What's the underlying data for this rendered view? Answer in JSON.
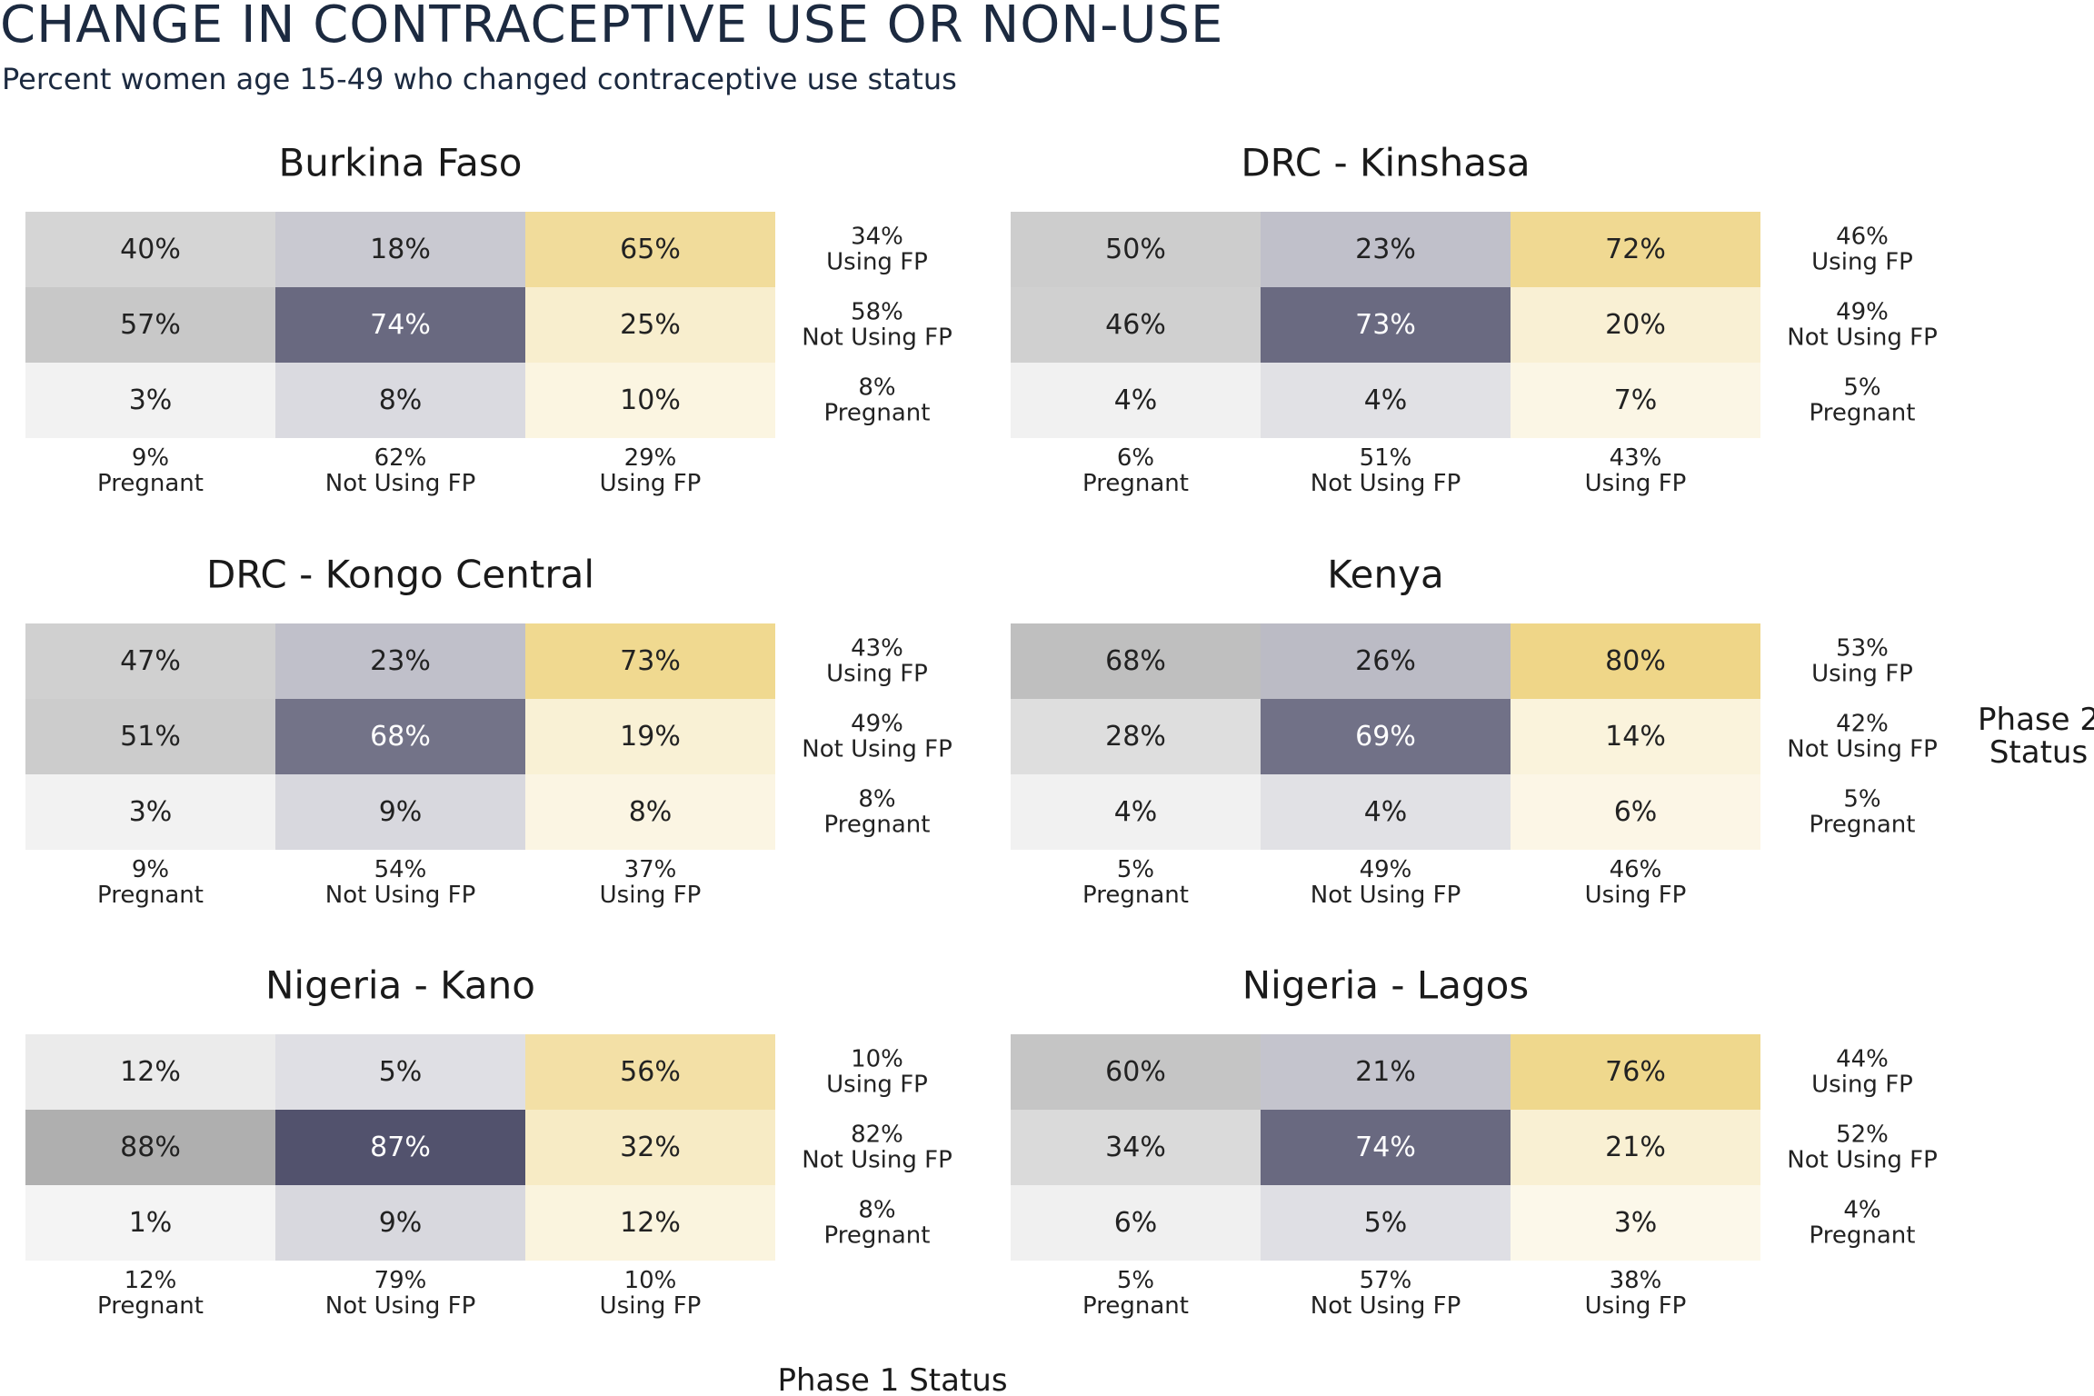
{
  "title": "CHANGE IN CONTRACEPTIVE USE OR NON-USE",
  "subtitle": "Percent women age 15-49 who changed contraceptive use status",
  "x_axis_label": "Phase 1 Status",
  "y_axis_label": [
    "Phase 2",
    "Status"
  ],
  "colors": {
    "pregnant": "#a6a6a6",
    "not_using": "#3c3c5a",
    "using": "#ebcd6e"
  },
  "chart_data": {
    "type": "heatmap",
    "columns": [
      "Pregnant",
      "Not Using FP",
      "Using FP"
    ],
    "rows": [
      "Using FP",
      "Not Using FP",
      "Pregnant"
    ],
    "xlabel": "Phase 1 Status",
    "ylabel": "Phase 2 Status",
    "panels": [
      {
        "title": "Burkina Faso",
        "cells": [
          [
            "40%",
            "18%",
            "65%"
          ],
          [
            "57%",
            "74%",
            "25%"
          ],
          [
            "3%",
            "8%",
            "10%"
          ]
        ],
        "values": [
          [
            40,
            18,
            65
          ],
          [
            57,
            74,
            25
          ],
          [
            3,
            8,
            10
          ]
        ],
        "col_totals": [
          "9%",
          "62%",
          "29%"
        ],
        "row_totals": [
          "34%",
          "58%",
          "8%"
        ]
      },
      {
        "title": "DRC - Kinshasa",
        "cells": [
          [
            "50%",
            "23%",
            "72%"
          ],
          [
            "46%",
            "73%",
            "20%"
          ],
          [
            "4%",
            "4%",
            "7%"
          ]
        ],
        "values": [
          [
            50,
            23,
            72
          ],
          [
            46,
            73,
            20
          ],
          [
            4,
            4,
            7
          ]
        ],
        "col_totals": [
          "6%",
          "51%",
          "43%"
        ],
        "row_totals": [
          "46%",
          "49%",
          "5%"
        ]
      },
      {
        "title": "DRC - Kongo Central",
        "cells": [
          [
            "47%",
            "23%",
            "73%"
          ],
          [
            "51%",
            "68%",
            "19%"
          ],
          [
            "3%",
            "9%",
            "8%"
          ]
        ],
        "values": [
          [
            47,
            23,
            73
          ],
          [
            51,
            68,
            19
          ],
          [
            3,
            9,
            8
          ]
        ],
        "col_totals": [
          "9%",
          "54%",
          "37%"
        ],
        "row_totals": [
          "43%",
          "49%",
          "8%"
        ]
      },
      {
        "title": "Kenya",
        "cells": [
          [
            "68%",
            "26%",
            "80%"
          ],
          [
            "28%",
            "69%",
            "14%"
          ],
          [
            "4%",
            "4%",
            "6%"
          ]
        ],
        "values": [
          [
            68,
            26,
            80
          ],
          [
            28,
            69,
            14
          ],
          [
            4,
            4,
            6
          ]
        ],
        "col_totals": [
          "5%",
          "49%",
          "46%"
        ],
        "row_totals": [
          "53%",
          "42%",
          "5%"
        ]
      },
      {
        "title": "Nigeria - Kano",
        "cells": [
          [
            "12%",
            "5%",
            "56%"
          ],
          [
            "88%",
            "87%",
            "32%"
          ],
          [
            "1%",
            "9%",
            "12%"
          ]
        ],
        "values": [
          [
            12,
            5,
            56
          ],
          [
            88,
            87,
            32
          ],
          [
            1,
            9,
            12
          ]
        ],
        "col_totals": [
          "12%",
          "79%",
          "10%"
        ],
        "row_totals": [
          "10%",
          "82%",
          "8%"
        ]
      },
      {
        "title": "Nigeria - Lagos",
        "cells": [
          [
            "60%",
            "21%",
            "76%"
          ],
          [
            "34%",
            "74%",
            "21%"
          ],
          [
            "6%",
            "5%",
            "3%"
          ]
        ],
        "values": [
          [
            60,
            21,
            76
          ],
          [
            34,
            74,
            21
          ],
          [
            6,
            5,
            3
          ]
        ],
        "col_totals": [
          "5%",
          "57%",
          "38%"
        ],
        "row_totals": [
          "44%",
          "52%",
          "4%"
        ]
      }
    ]
  }
}
